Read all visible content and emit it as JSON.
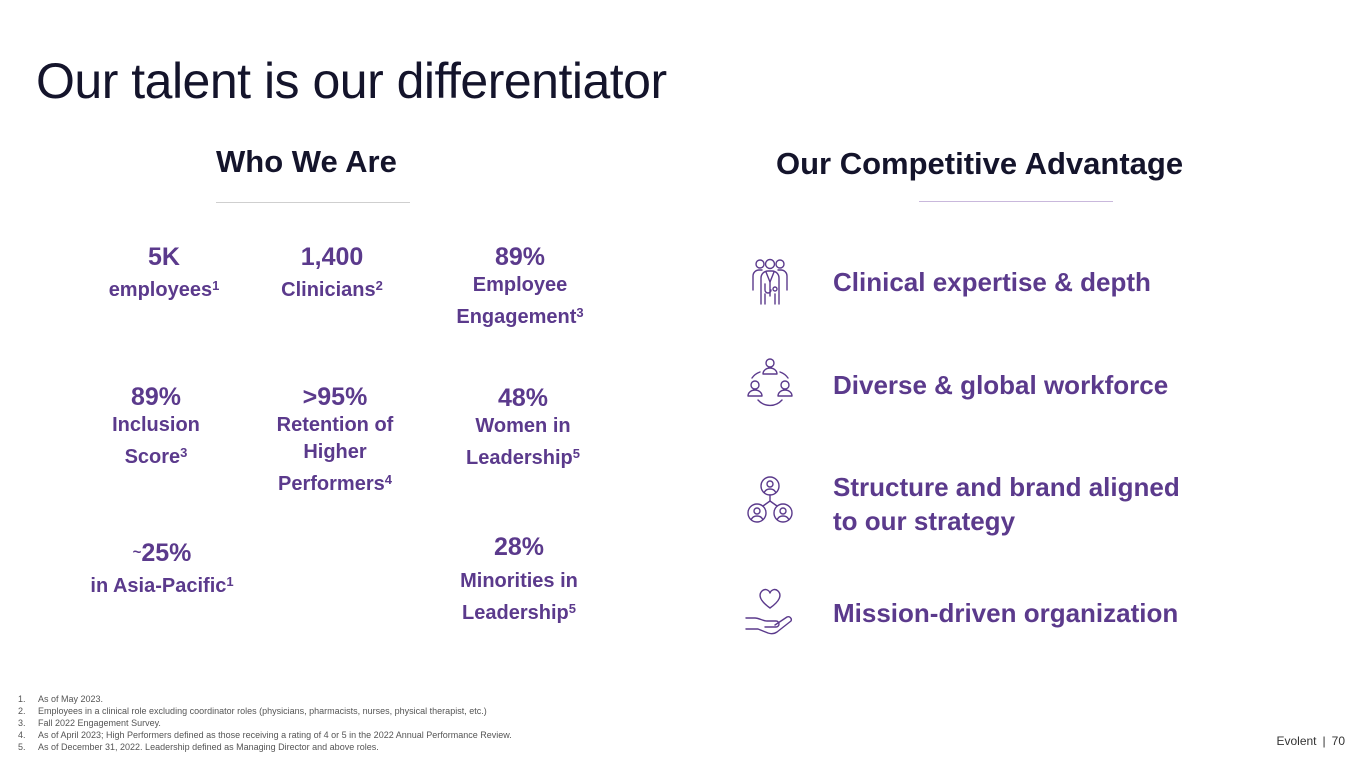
{
  "title": "Our talent is our differentiator",
  "who_we_are": {
    "heading": "Who We Are",
    "stats": [
      {
        "value": "5K",
        "label": [
          "employees"
        ],
        "sup": "1"
      },
      {
        "value": "1,400",
        "label": [
          "Clinicians"
        ],
        "sup": "2"
      },
      {
        "value": "89%",
        "label": [
          "Employee",
          "Engagement"
        ],
        "sup": "3"
      },
      {
        "value": "89%",
        "label": [
          "Inclusion",
          "Score"
        ],
        "sup": "3"
      },
      {
        "value": ">95%",
        "label": [
          "Retention of",
          "Higher",
          "Performers"
        ],
        "sup": "4"
      },
      {
        "value": "48%",
        "label": [
          "Women in",
          "Leadership"
        ],
        "sup": "5"
      },
      {
        "value_prefix": "~",
        "value": "25%",
        "label": [
          "in Asia-Pacific"
        ],
        "sup": "1"
      },
      {
        "value": "28%",
        "label": [
          "Minorities in",
          "Leadership"
        ],
        "sup": "5"
      }
    ]
  },
  "competitive_advantage": {
    "heading": "Our Competitive Advantage",
    "items": [
      {
        "icon": "clinicians-group-icon",
        "text": [
          "Clinical expertise & depth"
        ]
      },
      {
        "icon": "global-network-people-icon",
        "text": [
          "Diverse & global workforce"
        ]
      },
      {
        "icon": "org-structure-icon",
        "text": [
          "Structure and brand aligned",
          "to our strategy"
        ]
      },
      {
        "icon": "heart-in-hand-icon",
        "text": [
          "Mission-driven organization"
        ]
      }
    ]
  },
  "footnotes": [
    {
      "num": "1.",
      "text": "As of May 2023."
    },
    {
      "num": "2.",
      "text": "Employees in a clinical role excluding coordinator roles (physicians, pharmacists, nurses, physical therapist, etc.)"
    },
    {
      "num": "3.",
      "text": "Fall 2022 Engagement Survey."
    },
    {
      "num": "4.",
      "text": "As of April 2023; High Performers defined as those receiving a rating of 4 or 5 in the 2022 Annual Performance Review."
    },
    {
      "num": "5.",
      "text": "As of December 31, 2022. Leadership defined as Managing Director and above roles."
    }
  ],
  "footer": {
    "brand": "Evolent",
    "separator": "|",
    "page": "70"
  },
  "colors": {
    "accent": "#5b3a8c",
    "title": "#14142b"
  }
}
